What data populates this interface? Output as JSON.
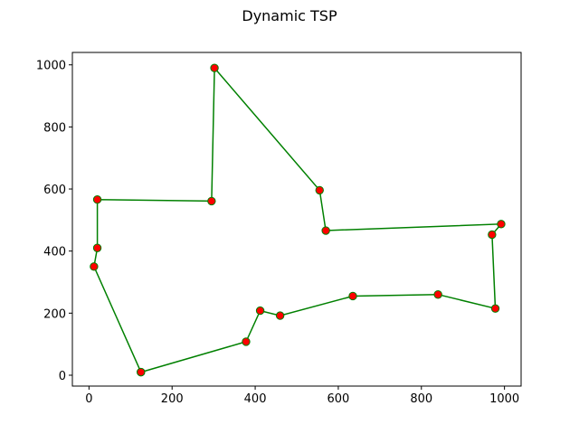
{
  "chart_data": {
    "type": "line",
    "title": "Dynamic TSP",
    "xlabel": "",
    "ylabel": "",
    "xlim": [
      -40,
      1040
    ],
    "ylim": [
      -35,
      1040
    ],
    "xticks": [
      0,
      200,
      400,
      600,
      800,
      1000
    ],
    "yticks": [
      0,
      200,
      400,
      600,
      800,
      1000
    ],
    "grid": false,
    "line_color": "#008000",
    "marker_color": "#ff0000",
    "marker_edge_color": "#008000",
    "series": [
      {
        "points": [
          {
            "x": 125,
            "y": 10
          },
          {
            "x": 378,
            "y": 108
          },
          {
            "x": 412,
            "y": 208
          },
          {
            "x": 460,
            "y": 192
          },
          {
            "x": 635,
            "y": 255
          },
          {
            "x": 840,
            "y": 260
          },
          {
            "x": 978,
            "y": 215
          },
          {
            "x": 970,
            "y": 453
          },
          {
            "x": 992,
            "y": 487
          },
          {
            "x": 570,
            "y": 466
          },
          {
            "x": 555,
            "y": 596
          },
          {
            "x": 302,
            "y": 990
          },
          {
            "x": 295,
            "y": 561
          },
          {
            "x": 20,
            "y": 566
          },
          {
            "x": 20,
            "y": 410
          },
          {
            "x": 12,
            "y": 350
          },
          {
            "x": 125,
            "y": 10
          }
        ]
      }
    ]
  }
}
